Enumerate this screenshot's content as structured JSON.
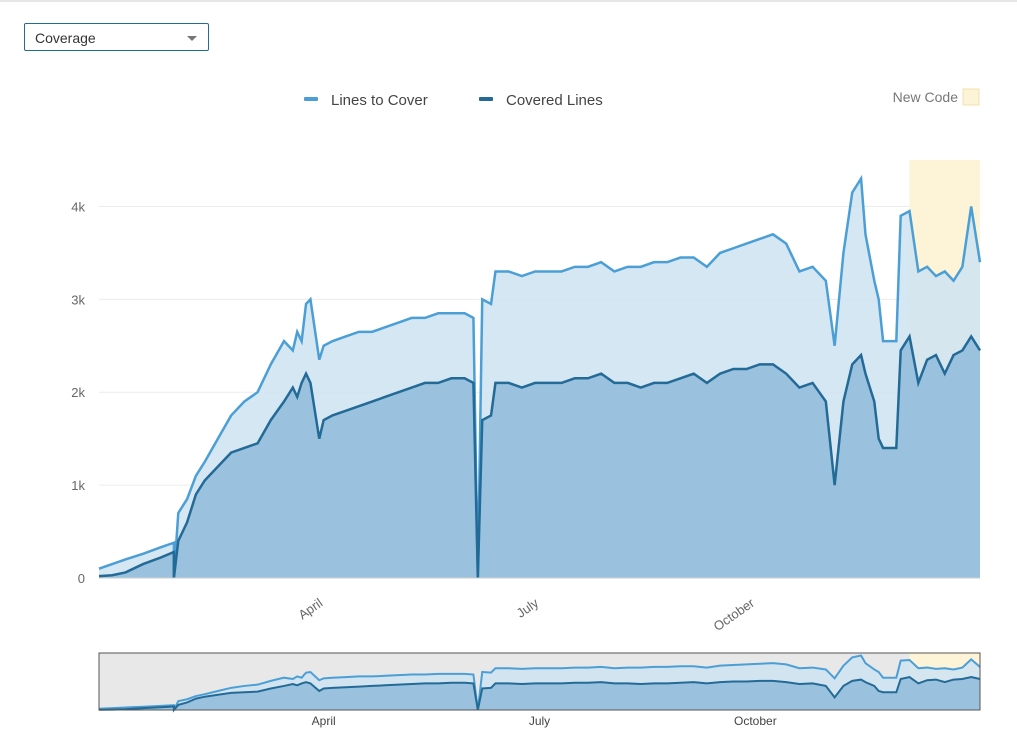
{
  "measure_select": {
    "value": "Coverage"
  },
  "legend": {
    "new_code_label": "New Code"
  },
  "colors": {
    "lines_to_cover": "#4b9fd5",
    "covered_lines": "#236a97",
    "area_light": "#cfe3f2",
    "area_dark": "#93bedb",
    "new_code": "#fdf3d6"
  },
  "chart_data": {
    "type": "area",
    "x_tick_labels": [
      "April",
      "July",
      "October"
    ],
    "y_tick_labels": [
      "0",
      "1k",
      "2k",
      "3k",
      "4k"
    ],
    "ylim": [
      0,
      4500
    ],
    "grid": true,
    "legend_placement": "top",
    "series": [
      {
        "name": "Lines to Cover",
        "points": [
          [
            0,
            100
          ],
          [
            3,
            150
          ],
          [
            6,
            200
          ],
          [
            10,
            260
          ],
          [
            14,
            330
          ],
          [
            17,
            380
          ],
          [
            17,
            0
          ],
          [
            18,
            700
          ],
          [
            20,
            850
          ],
          [
            22,
            1100
          ],
          [
            24,
            1250
          ],
          [
            27,
            1500
          ],
          [
            30,
            1750
          ],
          [
            33,
            1900
          ],
          [
            36,
            2000
          ],
          [
            39,
            2300
          ],
          [
            42,
            2550
          ],
          [
            44,
            2450
          ],
          [
            45,
            2650
          ],
          [
            46,
            2550
          ],
          [
            47,
            2950
          ],
          [
            48,
            3000
          ],
          [
            50,
            2350
          ],
          [
            51,
            2500
          ],
          [
            53,
            2550
          ],
          [
            56,
            2600
          ],
          [
            59,
            2650
          ],
          [
            62,
            2650
          ],
          [
            65,
            2700
          ],
          [
            68,
            2750
          ],
          [
            71,
            2800
          ],
          [
            74,
            2800
          ],
          [
            77,
            2850
          ],
          [
            80,
            2850
          ],
          [
            83,
            2850
          ],
          [
            85,
            2800
          ],
          [
            86,
            0
          ],
          [
            87,
            3000
          ],
          [
            89,
            2950
          ],
          [
            90,
            3300
          ],
          [
            93,
            3300
          ],
          [
            96,
            3250
          ],
          [
            99,
            3300
          ],
          [
            102,
            3300
          ],
          [
            105,
            3300
          ],
          [
            108,
            3350
          ],
          [
            111,
            3350
          ],
          [
            114,
            3400
          ],
          [
            117,
            3300
          ],
          [
            120,
            3350
          ],
          [
            123,
            3350
          ],
          [
            126,
            3400
          ],
          [
            129,
            3400
          ],
          [
            132,
            3450
          ],
          [
            135,
            3450
          ],
          [
            138,
            3350
          ],
          [
            141,
            3500
          ],
          [
            144,
            3550
          ],
          [
            147,
            3600
          ],
          [
            150,
            3650
          ],
          [
            153,
            3700
          ],
          [
            156,
            3600
          ],
          [
            159,
            3300
          ],
          [
            162,
            3350
          ],
          [
            165,
            3200
          ],
          [
            167,
            2500
          ],
          [
            169,
            3500
          ],
          [
            171,
            4150
          ],
          [
            173,
            4300
          ],
          [
            174,
            3700
          ],
          [
            176,
            3200
          ],
          [
            177,
            3000
          ],
          [
            178,
            2550
          ],
          [
            181,
            2550
          ],
          [
            182,
            3900
          ],
          [
            184,
            3950
          ],
          [
            186,
            3300
          ],
          [
            188,
            3350
          ],
          [
            190,
            3250
          ],
          [
            192,
            3300
          ],
          [
            194,
            3200
          ],
          [
            196,
            3350
          ],
          [
            198,
            4000
          ],
          [
            200,
            3400
          ]
        ]
      },
      {
        "name": "Covered Lines",
        "points": [
          [
            0,
            20
          ],
          [
            3,
            30
          ],
          [
            6,
            60
          ],
          [
            10,
            150
          ],
          [
            14,
            220
          ],
          [
            17,
            280
          ],
          [
            17,
            0
          ],
          [
            18,
            400
          ],
          [
            20,
            600
          ],
          [
            22,
            900
          ],
          [
            24,
            1050
          ],
          [
            27,
            1200
          ],
          [
            30,
            1350
          ],
          [
            33,
            1400
          ],
          [
            36,
            1450
          ],
          [
            39,
            1700
          ],
          [
            42,
            1900
          ],
          [
            44,
            2050
          ],
          [
            45,
            1950
          ],
          [
            46,
            2100
          ],
          [
            47,
            2200
          ],
          [
            48,
            2100
          ],
          [
            50,
            1500
          ],
          [
            51,
            1700
          ],
          [
            53,
            1750
          ],
          [
            56,
            1800
          ],
          [
            59,
            1850
          ],
          [
            62,
            1900
          ],
          [
            65,
            1950
          ],
          [
            68,
            2000
          ],
          [
            71,
            2050
          ],
          [
            74,
            2100
          ],
          [
            77,
            2100
          ],
          [
            80,
            2150
          ],
          [
            83,
            2150
          ],
          [
            85,
            2100
          ],
          [
            86,
            0
          ],
          [
            87,
            1700
          ],
          [
            89,
            1750
          ],
          [
            90,
            2100
          ],
          [
            93,
            2100
          ],
          [
            96,
            2050
          ],
          [
            99,
            2100
          ],
          [
            102,
            2100
          ],
          [
            105,
            2100
          ],
          [
            108,
            2150
          ],
          [
            111,
            2150
          ],
          [
            114,
            2200
          ],
          [
            117,
            2100
          ],
          [
            120,
            2100
          ],
          [
            123,
            2050
          ],
          [
            126,
            2100
          ],
          [
            129,
            2100
          ],
          [
            132,
            2150
          ],
          [
            135,
            2200
          ],
          [
            138,
            2100
          ],
          [
            141,
            2200
          ],
          [
            144,
            2250
          ],
          [
            147,
            2250
          ],
          [
            150,
            2300
          ],
          [
            153,
            2300
          ],
          [
            156,
            2200
          ],
          [
            159,
            2050
          ],
          [
            162,
            2100
          ],
          [
            165,
            1900
          ],
          [
            167,
            1000
          ],
          [
            169,
            1900
          ],
          [
            171,
            2300
          ],
          [
            173,
            2400
          ],
          [
            174,
            2200
          ],
          [
            176,
            1900
          ],
          [
            177,
            1500
          ],
          [
            178,
            1400
          ],
          [
            181,
            1400
          ],
          [
            182,
            2450
          ],
          [
            184,
            2600
          ],
          [
            186,
            2100
          ],
          [
            188,
            2350
          ],
          [
            190,
            2400
          ],
          [
            192,
            2200
          ],
          [
            194,
            2400
          ],
          [
            196,
            2450
          ],
          [
            198,
            2600
          ],
          [
            200,
            2450
          ]
        ]
      }
    ],
    "x_tick_positions": [
      51,
      100,
      149
    ],
    "new_code_start": 184,
    "x_max": 200
  }
}
